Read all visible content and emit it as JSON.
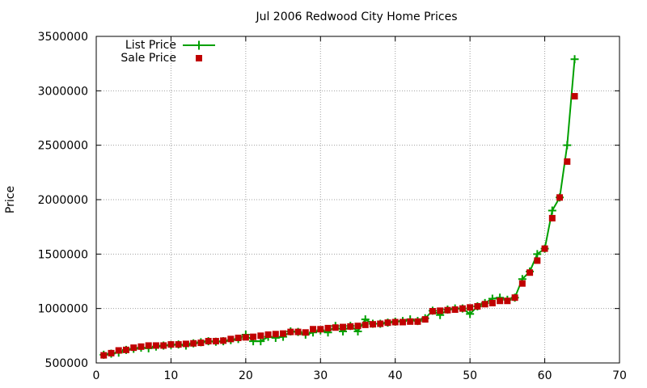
{
  "chart_data": {
    "type": "line",
    "title": "Jul 2006 Redwood City Home Prices",
    "xlabel": "",
    "ylabel": "Price",
    "xlim": [
      0,
      70
    ],
    "ylim": [
      500000,
      3500000
    ],
    "x_ticks": [
      0,
      10,
      20,
      30,
      40,
      50,
      60,
      70
    ],
    "y_ticks": [
      500000,
      1000000,
      1500000,
      2000000,
      2500000,
      3000000,
      3500000
    ],
    "grid": true,
    "legend_position": "top-left",
    "series": [
      {
        "name": "List Price",
        "style": "line-plus",
        "color": "#00a000",
        "x": [
          1,
          2,
          3,
          4,
          5,
          6,
          7,
          8,
          9,
          10,
          11,
          12,
          13,
          14,
          15,
          16,
          17,
          18,
          19,
          20,
          21,
          22,
          23,
          24,
          25,
          26,
          27,
          28,
          29,
          30,
          31,
          32,
          33,
          34,
          35,
          36,
          37,
          38,
          39,
          40,
          41,
          42,
          43,
          44,
          45,
          46,
          47,
          48,
          49,
          50,
          51,
          52,
          53,
          54,
          55,
          56,
          57,
          58,
          59,
          60,
          61,
          62,
          63,
          64
        ],
        "values": [
          575000,
          585000,
          595000,
          620000,
          630000,
          640000,
          635000,
          650000,
          660000,
          665000,
          670000,
          660000,
          680000,
          690000,
          700000,
          695000,
          700000,
          710000,
          720000,
          760000,
          700000,
          700000,
          740000,
          730000,
          740000,
          790000,
          785000,
          760000,
          780000,
          800000,
          780000,
          840000,
          790000,
          840000,
          790000,
          900000,
          860000,
          860000,
          870000,
          880000,
          885000,
          900000,
          885000,
          910000,
          980000,
          940000,
          990000,
          1000000,
          1000000,
          950000,
          1020000,
          1050000,
          1090000,
          1100000,
          1080000,
          1100000,
          1270000,
          1340000,
          1500000,
          1550000,
          1900000,
          2020000,
          2500000,
          3290000
        ]
      },
      {
        "name": "Sale Price",
        "style": "square-points",
        "color": "#c00000",
        "x": [
          1,
          2,
          3,
          4,
          5,
          6,
          7,
          8,
          9,
          10,
          11,
          12,
          13,
          14,
          15,
          16,
          17,
          18,
          19,
          20,
          21,
          22,
          23,
          24,
          25,
          26,
          27,
          28,
          29,
          30,
          31,
          32,
          33,
          34,
          35,
          36,
          37,
          38,
          39,
          40,
          41,
          42,
          43,
          44,
          45,
          46,
          47,
          48,
          49,
          50,
          51,
          52,
          53,
          54,
          55,
          56,
          57,
          58,
          59,
          60,
          61,
          62,
          63,
          64
        ],
        "values": [
          570000,
          590000,
          615000,
          620000,
          640000,
          650000,
          660000,
          660000,
          660000,
          670000,
          670000,
          675000,
          680000,
          685000,
          700000,
          700000,
          705000,
          720000,
          730000,
          735000,
          740000,
          750000,
          760000,
          765000,
          770000,
          785000,
          785000,
          780000,
          810000,
          810000,
          820000,
          825000,
          830000,
          835000,
          840000,
          850000,
          855000,
          860000,
          870000,
          875000,
          875000,
          880000,
          880000,
          900000,
          975000,
          980000,
          985000,
          990000,
          1000000,
          1010000,
          1020000,
          1040000,
          1050000,
          1070000,
          1070000,
          1100000,
          1230000,
          1330000,
          1440000,
          1550000,
          1830000,
          2020000,
          2350000,
          2950000
        ]
      }
    ]
  }
}
